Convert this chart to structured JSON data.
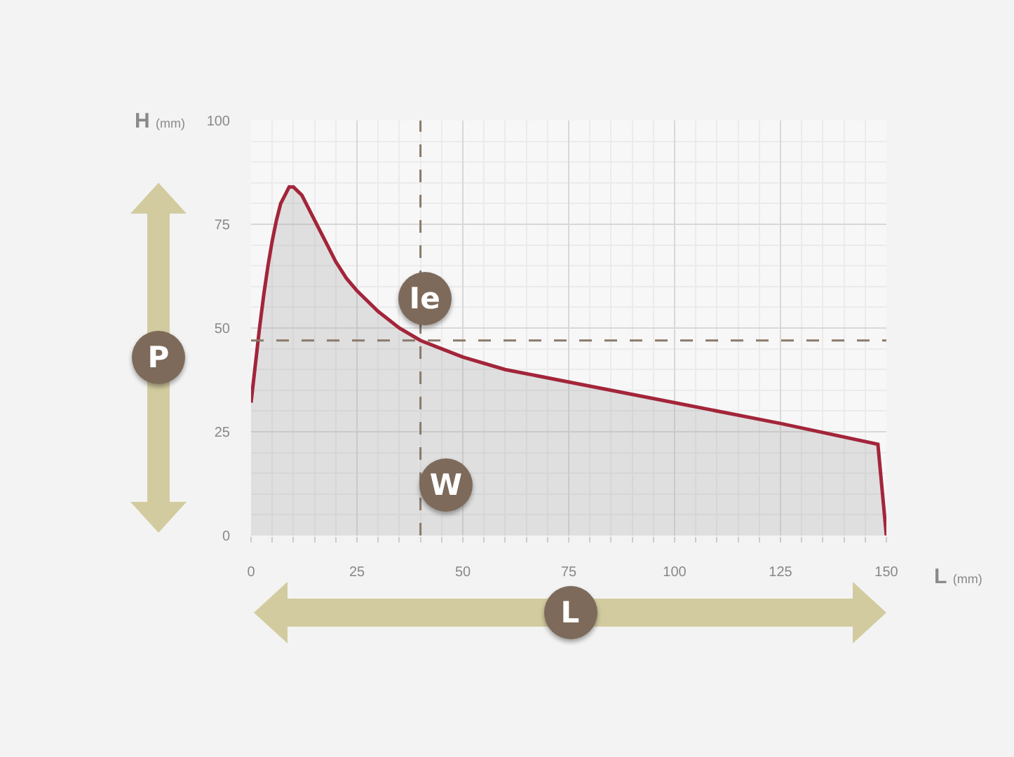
{
  "chart_data": {
    "type": "area",
    "xlabel": "L (mm)",
    "ylabel": "H (mm)",
    "x": [
      0,
      1,
      2,
      3,
      4,
      5,
      6,
      7,
      8,
      9,
      10,
      11,
      12,
      13,
      15,
      17.5,
      20,
      22.5,
      25,
      30,
      35,
      40,
      45,
      50,
      60,
      75,
      100,
      125,
      148,
      150
    ],
    "series": [
      {
        "color": "#a3253a",
        "values": [
          32,
          41,
          50,
          58,
          65,
          71,
          76,
          80,
          82,
          84,
          84,
          83,
          82,
          80,
          76,
          71,
          66,
          62,
          59,
          54,
          50,
          47,
          45,
          43,
          40,
          37,
          32,
          27,
          22,
          0
        ]
      }
    ],
    "xlim": [
      0,
      150
    ],
    "ylim": [
      0,
      100
    ],
    "xticks": [
      0,
      25,
      50,
      75,
      100,
      125,
      150
    ],
    "yticks": [
      0,
      25,
      50,
      75,
      100
    ],
    "grid": true,
    "marker": "none",
    "ref_lines": [
      {
        "axis": "x",
        "value": 40,
        "line_style": "dashed",
        "color": "#8a7a6a"
      },
      {
        "axis": "y",
        "value": 47,
        "line_style": "dashed",
        "color": "#8a7a6a"
      }
    ],
    "annotations": [
      {
        "text": "Ie",
        "x": 41,
        "y": 57
      },
      {
        "text": "W",
        "x": 46,
        "y": 12
      },
      "P",
      "L"
    ]
  }
}
